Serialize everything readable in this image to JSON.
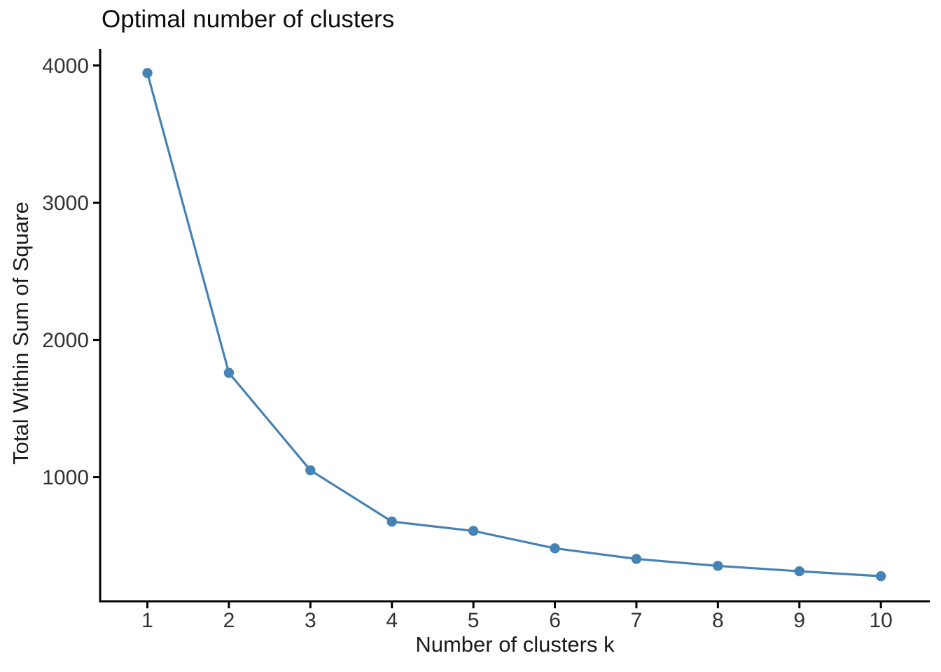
{
  "title": "Optimal number of clusters",
  "chart_data": {
    "type": "line",
    "title": "Optimal number of clusters",
    "xlabel": "Number of clusters k",
    "ylabel": "Total Within Sum of Square",
    "x": [
      1,
      2,
      3,
      4,
      5,
      6,
      7,
      8,
      9,
      10
    ],
    "values": [
      3945,
      1760,
      1050,
      676,
      608,
      481,
      404,
      353,
      314,
      278
    ],
    "x_tick_labels": [
      "1",
      "2",
      "3",
      "4",
      "5",
      "6",
      "7",
      "8",
      "9",
      "10"
    ],
    "y_tick_values": [
      1000,
      2000,
      3000,
      4000
    ],
    "y_tick_labels": [
      "1000",
      "2000",
      "3000",
      "4000"
    ],
    "xlim": [
      0.42,
      10.6
    ],
    "ylim": [
      95,
      4120
    ],
    "grid": false,
    "legend_position": "none",
    "line_color": "#4682B4",
    "marker": "circle",
    "axis_color": "#000000"
  }
}
